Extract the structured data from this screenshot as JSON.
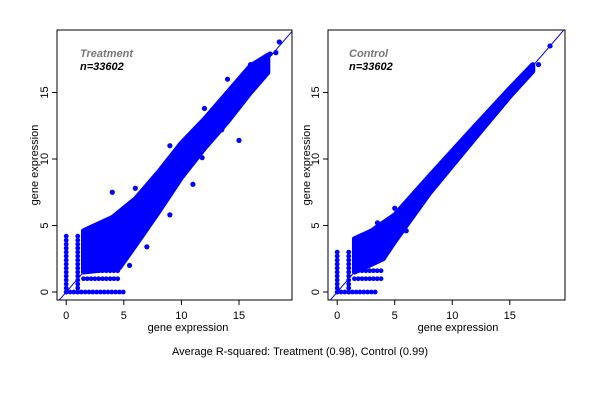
{
  "caption": "Average R-squared: Treatment (0.98), Control (0.99)",
  "point_color": "#0000ff",
  "chart_data": [
    {
      "type": "scatter",
      "title": "Treatment",
      "n_label": "n=33602",
      "xlabel": "gene expression",
      "ylabel": "gene expression",
      "xlim": [
        -0.8,
        19.6
      ],
      "ylim": [
        -0.6,
        19.7
      ],
      "xticks": [
        0,
        5,
        10,
        15
      ],
      "yticks": [
        0,
        5,
        10,
        15
      ],
      "reference_line": "y = x",
      "dense_region": [
        [
          1.5,
          1.5
        ],
        [
          4.6,
          1.8
        ],
        [
          6,
          3.5
        ],
        [
          8,
          6.0
        ],
        [
          10,
          8.6
        ],
        [
          12,
          10.8
        ],
        [
          14,
          12.8
        ],
        [
          16,
          15
        ],
        [
          17.5,
          16.5
        ],
        [
          17.5,
          17.8
        ],
        [
          16,
          17
        ],
        [
          14,
          15
        ],
        [
          12,
          13
        ],
        [
          10,
          11.2
        ],
        [
          8,
          9
        ],
        [
          6,
          7
        ],
        [
          4,
          5.6
        ],
        [
          2,
          4.8
        ],
        [
          1.5,
          4.6
        ]
      ],
      "rows": [
        {
          "y": 0,
          "x": [
            0,
            5
          ]
        },
        {
          "y": 1,
          "x": [
            1.5,
            4.6
          ]
        },
        {
          "y": 1.6,
          "x": [
            1.5,
            4.6
          ]
        }
      ],
      "columns": [
        {
          "x": 0,
          "y": [
            0,
            4.4
          ]
        },
        {
          "x": 1,
          "y": [
            0,
            4.4
          ]
        }
      ],
      "outliers": [
        [
          18.5,
          18.8
        ],
        [
          18.2,
          18
        ],
        [
          17.7,
          17.9
        ],
        [
          16,
          17.1
        ],
        [
          15.5,
          16
        ],
        [
          14,
          16
        ],
        [
          12,
          13.8
        ],
        [
          15,
          11.4
        ],
        [
          11,
          8.1
        ],
        [
          9,
          5.8
        ],
        [
          7,
          3.4
        ],
        [
          5.5,
          2
        ],
        [
          4,
          7.5
        ],
        [
          9,
          11
        ],
        [
          11.8,
          10.1
        ],
        [
          6,
          7.8
        ],
        [
          8.5,
          9.5
        ],
        [
          13.5,
          12.2
        ]
      ]
    },
    {
      "type": "scatter",
      "title": "Control",
      "n_label": "n=33602",
      "xlabel": "gene expression",
      "ylabel": "gene expression",
      "xlim": [
        -0.8,
        19.8
      ],
      "ylim": [
        -0.6,
        19.7
      ],
      "xticks": [
        0,
        5,
        10,
        15
      ],
      "yticks": [
        0,
        5,
        10,
        15
      ],
      "reference_line": "y = x",
      "dense_region": [
        [
          1.5,
          1.5
        ],
        [
          4,
          2.5
        ],
        [
          5,
          3.8
        ],
        [
          8,
          7.4
        ],
        [
          12,
          11.6
        ],
        [
          15,
          14.7
        ],
        [
          17,
          16.6
        ],
        [
          17,
          17.1
        ],
        [
          15,
          15.3
        ],
        [
          12,
          12.5
        ],
        [
          8,
          8.7
        ],
        [
          5,
          5.8
        ],
        [
          3,
          4.6
        ],
        [
          1.5,
          4.0
        ]
      ],
      "rows": [
        {
          "y": 0,
          "x": [
            0,
            3.5
          ]
        },
        {
          "y": 1,
          "x": [
            1.5,
            4
          ]
        },
        {
          "y": 1.6,
          "x": [
            1.5,
            4
          ]
        }
      ],
      "columns": [
        {
          "x": 0,
          "y": [
            0,
            3.2
          ]
        },
        {
          "x": 1,
          "y": [
            0,
            3.2
          ]
        }
      ],
      "outliers": [
        [
          18.5,
          18.5
        ],
        [
          17.5,
          17.1
        ],
        [
          3.5,
          5.2
        ],
        [
          5,
          6.3
        ],
        [
          6,
          4.6
        ],
        [
          9.5,
          9
        ]
      ]
    }
  ]
}
